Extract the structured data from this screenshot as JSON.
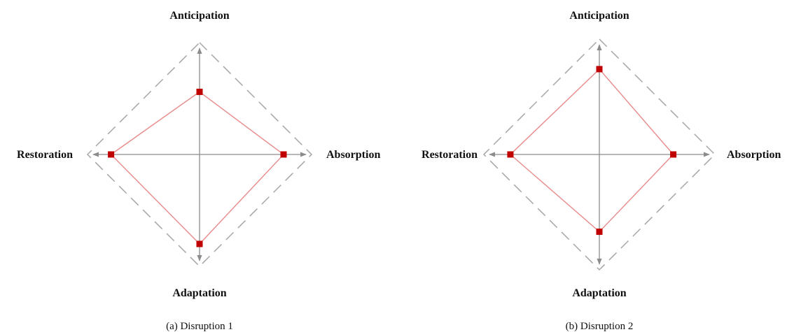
{
  "colors": {
    "data": "#c00000",
    "data_line": "#e88a8a",
    "axis": "#8c8c8c",
    "frame": "#a6a6a6"
  },
  "chart_data": [
    {
      "type": "radar",
      "caption": "(a) Disruption 1",
      "axes": [
        "Anticipation",
        "Absorption",
        "Adaptation",
        "Restoration"
      ],
      "range": [
        0,
        1
      ],
      "values": [
        0.56,
        0.75,
        0.8,
        0.79
      ],
      "max_outline": "dashed",
      "grid": false,
      "legend": "none"
    },
    {
      "type": "radar",
      "caption": "(b) Disruption 2",
      "axes": [
        "Anticipation",
        "Absorption",
        "Adaptation",
        "Restoration"
      ],
      "range": [
        0,
        1
      ],
      "values": [
        0.74,
        0.64,
        0.67,
        0.77
      ],
      "max_outline": "dashed",
      "grid": false,
      "legend": "none"
    }
  ]
}
